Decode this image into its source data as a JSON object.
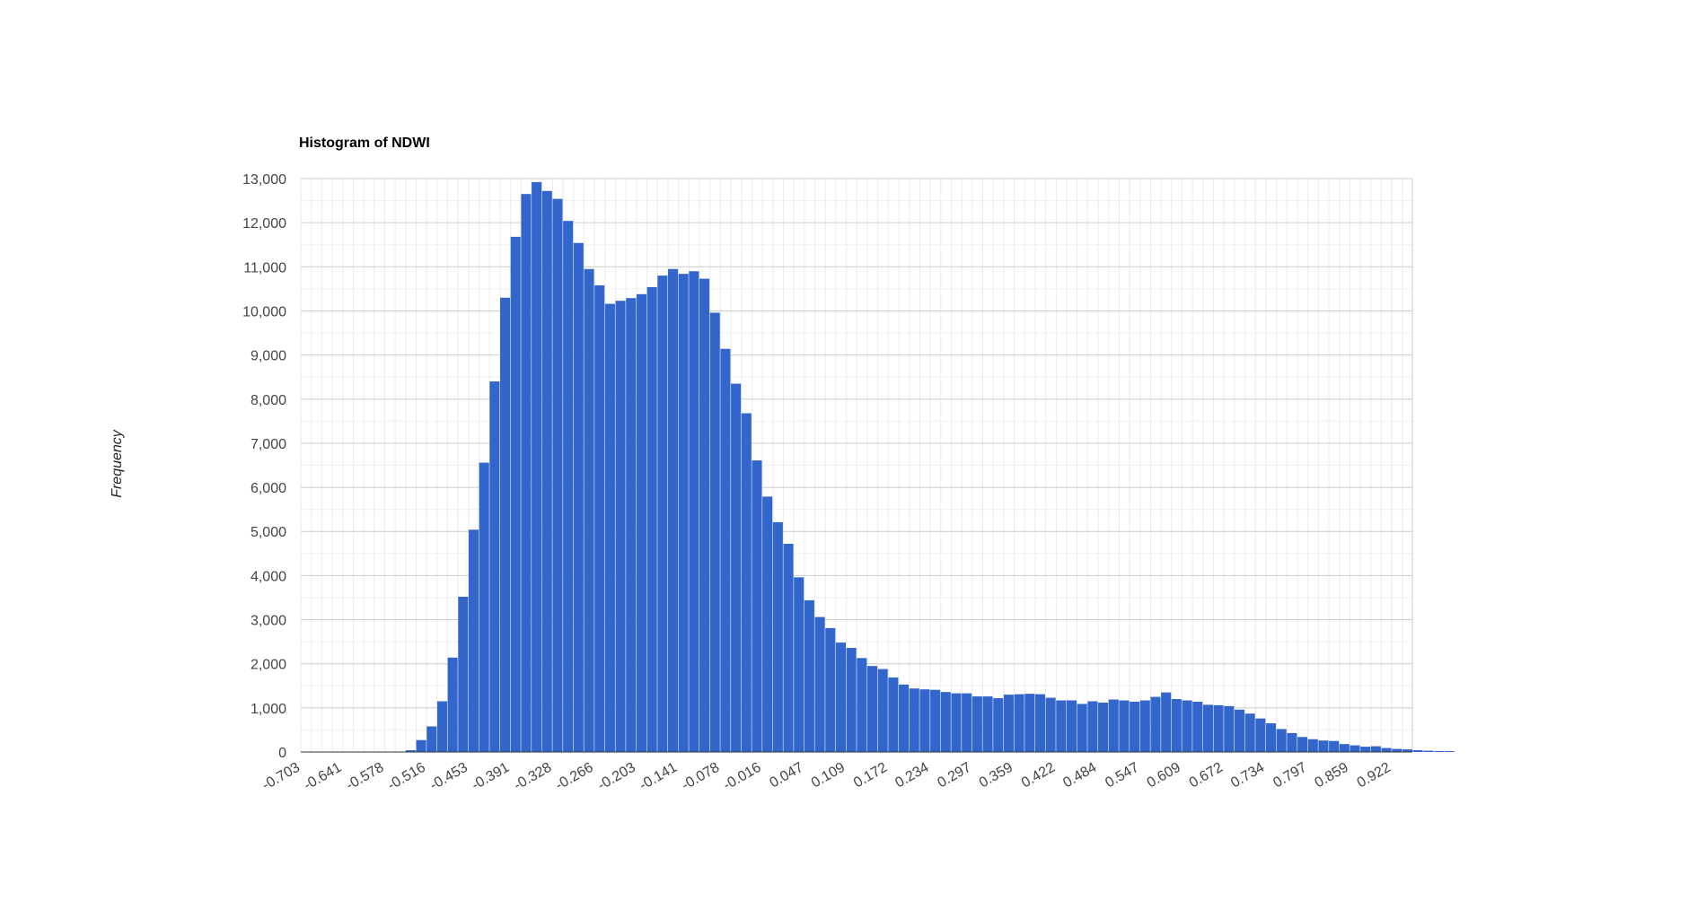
{
  "chart_data": {
    "type": "bar",
    "title": "Histogram of NDWI",
    "xlabel": "",
    "ylabel": "Frequency",
    "ylim": [
      0,
      13000
    ],
    "grid": true,
    "legend": "none",
    "bar_color": "#3366cc",
    "y_ticks": [
      "0",
      "1,000",
      "2,000",
      "3,000",
      "4,000",
      "5,000",
      "6,000",
      "7,000",
      "8,000",
      "9,000",
      "10,000",
      "11,000",
      "12,000",
      "13,000"
    ],
    "x_ticks": [
      "-0.703",
      "-0.641",
      "-0.578",
      "-0.516",
      "-0.453",
      "-0.391",
      "-0.328",
      "-0.266",
      "-0.203",
      "-0.141",
      "-0.078",
      "-0.016",
      "0.047",
      "0.109",
      "0.172",
      "0.234",
      "0.297",
      "0.359",
      "0.422",
      "0.484",
      "0.547",
      "0.609",
      "0.672",
      "0.734",
      "0.797",
      "0.859",
      "0.922"
    ],
    "x_range": [
      -0.703,
      0.953
    ],
    "bin_width": 0.01563,
    "values": [
      0,
      0,
      0,
      0,
      0,
      0,
      0,
      0,
      0,
      0,
      40,
      270,
      580,
      1150,
      2140,
      3520,
      5040,
      6560,
      8400,
      10300,
      11680,
      12650,
      12920,
      12720,
      12540,
      12040,
      11540,
      10950,
      10580,
      10160,
      10230,
      10290,
      10380,
      10540,
      10800,
      10950,
      10840,
      10900,
      10730,
      9960,
      9140,
      8350,
      7680,
      6610,
      5790,
      5210,
      4720,
      3960,
      3440,
      3060,
      2810,
      2480,
      2360,
      2130,
      1950,
      1880,
      1690,
      1530,
      1440,
      1420,
      1410,
      1360,
      1330,
      1330,
      1260,
      1260,
      1220,
      1300,
      1310,
      1320,
      1310,
      1230,
      1170,
      1170,
      1090,
      1150,
      1120,
      1190,
      1170,
      1140,
      1170,
      1250,
      1350,
      1200,
      1170,
      1140,
      1070,
      1060,
      1040,
      960,
      870,
      760,
      650,
      520,
      430,
      340,
      290,
      260,
      250,
      180,
      150,
      120,
      130,
      90,
      70,
      60,
      40,
      30,
      20,
      20
    ]
  }
}
